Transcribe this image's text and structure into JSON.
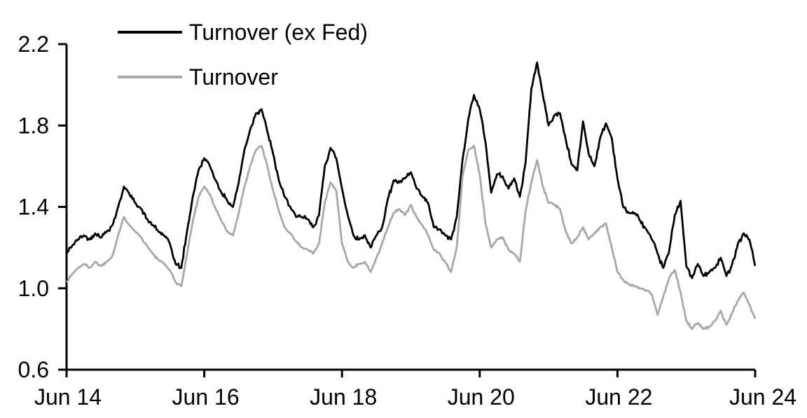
{
  "chart_data": {
    "type": "line",
    "title": "",
    "xlabel": "",
    "ylabel": "",
    "grid": false,
    "background_color": "#ffffff",
    "axis_color": "#000000",
    "legend_position": "top-left-inside",
    "ylim": [
      0.6,
      2.2
    ],
    "y_ticks": [
      "0.6",
      "1.0",
      "1.4",
      "1.8",
      "2.2"
    ],
    "y_tick_values": [
      0.6,
      1.0,
      1.4,
      1.8,
      2.2
    ],
    "x_ticks": [
      "Jun 14",
      "Jun 16",
      "Jun 18",
      "Jun 20",
      "Jun 22",
      "Jun 24"
    ],
    "x_tick_month_index": [
      0,
      24,
      48,
      72,
      96,
      120
    ],
    "x_start": "Jun 2014",
    "x_end": "Jun 2024",
    "frequency": "monthly",
    "series": [
      {
        "name": "Turnover (ex Fed)",
        "color": "#000000",
        "values": [
          1.17,
          1.21,
          1.24,
          1.26,
          1.24,
          1.27,
          1.25,
          1.28,
          1.31,
          1.4,
          1.5,
          1.46,
          1.42,
          1.39,
          1.34,
          1.31,
          1.28,
          1.26,
          1.22,
          1.12,
          1.1,
          1.28,
          1.45,
          1.58,
          1.64,
          1.6,
          1.53,
          1.47,
          1.43,
          1.4,
          1.52,
          1.68,
          1.78,
          1.86,
          1.88,
          1.77,
          1.66,
          1.53,
          1.45,
          1.4,
          1.35,
          1.35,
          1.34,
          1.3,
          1.36,
          1.6,
          1.69,
          1.64,
          1.49,
          1.36,
          1.26,
          1.24,
          1.26,
          1.2,
          1.26,
          1.3,
          1.44,
          1.53,
          1.52,
          1.54,
          1.57,
          1.49,
          1.45,
          1.42,
          1.3,
          1.29,
          1.26,
          1.24,
          1.35,
          1.63,
          1.83,
          1.95,
          1.88,
          1.72,
          1.47,
          1.56,
          1.55,
          1.49,
          1.54,
          1.45,
          1.62,
          1.98,
          2.11,
          1.95,
          1.8,
          1.85,
          1.86,
          1.73,
          1.61,
          1.58,
          1.82,
          1.66,
          1.6,
          1.74,
          1.81,
          1.74,
          1.54,
          1.4,
          1.37,
          1.37,
          1.33,
          1.29,
          1.24,
          1.17,
          1.1,
          1.18,
          1.36,
          1.43,
          1.11,
          1.05,
          1.12,
          1.06,
          1.08,
          1.1,
          1.15,
          1.06,
          1.12,
          1.22,
          1.27,
          1.24,
          1.11
        ]
      },
      {
        "name": "Turnover",
        "color": "#a8a8a8",
        "values": [
          1.03,
          1.07,
          1.1,
          1.12,
          1.1,
          1.13,
          1.11,
          1.13,
          1.16,
          1.26,
          1.35,
          1.31,
          1.28,
          1.25,
          1.21,
          1.17,
          1.14,
          1.12,
          1.09,
          1.03,
          1.01,
          1.17,
          1.33,
          1.45,
          1.5,
          1.46,
          1.39,
          1.33,
          1.28,
          1.26,
          1.37,
          1.5,
          1.6,
          1.68,
          1.7,
          1.6,
          1.48,
          1.38,
          1.3,
          1.27,
          1.23,
          1.2,
          1.19,
          1.17,
          1.22,
          1.42,
          1.52,
          1.48,
          1.22,
          1.13,
          1.1,
          1.12,
          1.13,
          1.08,
          1.15,
          1.22,
          1.3,
          1.37,
          1.39,
          1.36,
          1.41,
          1.35,
          1.31,
          1.26,
          1.19,
          1.17,
          1.13,
          1.08,
          1.2,
          1.55,
          1.68,
          1.7,
          1.56,
          1.32,
          1.2,
          1.24,
          1.25,
          1.19,
          1.17,
          1.13,
          1.38,
          1.52,
          1.63,
          1.5,
          1.42,
          1.41,
          1.39,
          1.28,
          1.22,
          1.25,
          1.3,
          1.24,
          1.27,
          1.3,
          1.32,
          1.2,
          1.08,
          1.04,
          1.02,
          1.01,
          1.0,
          0.99,
          0.97,
          0.87,
          0.96,
          1.05,
          1.09,
          0.98,
          0.84,
          0.8,
          0.83,
          0.8,
          0.81,
          0.84,
          0.89,
          0.82,
          0.88,
          0.94,
          0.98,
          0.92,
          0.85
        ]
      }
    ]
  }
}
